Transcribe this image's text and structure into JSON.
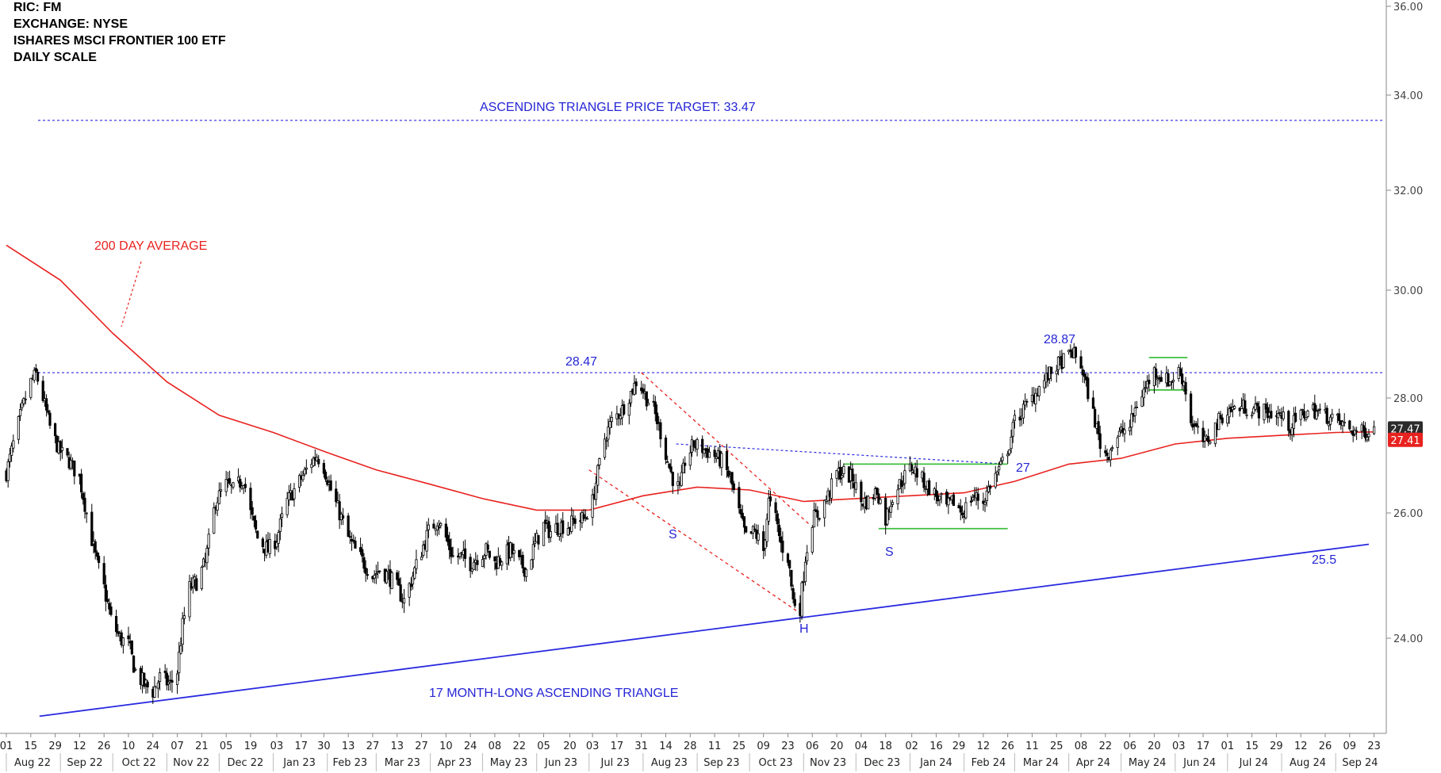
{
  "header": {
    "ric": "RIC: FM",
    "exchange": "EXCHANGE: NYSE",
    "name": "ISHARES MSCI FRONTIER 100 ETF",
    "scale": "DAILY SCALE"
  },
  "colors": {
    "price": "#000000",
    "average": "#e8221f",
    "trend": "#2a2ae0",
    "annotation_blue": "#2525d6",
    "rectangle": "#3fbf3f",
    "axis": "#888888"
  },
  "chart_data": {
    "type": "candlestick",
    "ylim": [
      22.5,
      36.0
    ],
    "y_ticks": [
      "36.00",
      "34.00",
      "32.00",
      "30.00",
      "28.00",
      "26.00",
      "24.00"
    ],
    "y_tick_values": [
      36,
      34,
      32,
      30,
      28,
      26,
      24
    ],
    "x_range": [
      "2022-08-01",
      "2024-09-30"
    ],
    "day_ticks": [
      {
        "d": "2022-08-01",
        "label": "01"
      },
      {
        "d": "2022-08-15",
        "label": "15"
      },
      {
        "d": "2022-08-29",
        "label": "29"
      },
      {
        "d": "2022-09-12",
        "label": "12"
      },
      {
        "d": "2022-09-26",
        "label": "26"
      },
      {
        "d": "2022-10-10",
        "label": "10"
      },
      {
        "d": "2022-10-24",
        "label": "24"
      },
      {
        "d": "2022-11-07",
        "label": "07"
      },
      {
        "d": "2022-11-21",
        "label": "21"
      },
      {
        "d": "2022-12-05",
        "label": "05"
      },
      {
        "d": "2022-12-19",
        "label": "19"
      },
      {
        "d": "2023-01-03",
        "label": "03"
      },
      {
        "d": "2023-01-17",
        "label": "17"
      },
      {
        "d": "2023-01-30",
        "label": "30"
      },
      {
        "d": "2023-02-13",
        "label": "13"
      },
      {
        "d": "2023-02-27",
        "label": "27"
      },
      {
        "d": "2023-03-13",
        "label": "13"
      },
      {
        "d": "2023-03-27",
        "label": "27"
      },
      {
        "d": "2023-04-10",
        "label": "10"
      },
      {
        "d": "2023-04-24",
        "label": "24"
      },
      {
        "d": "2023-05-08",
        "label": "08"
      },
      {
        "d": "2023-05-22",
        "label": "22"
      },
      {
        "d": "2023-06-05",
        "label": "05"
      },
      {
        "d": "2023-06-20",
        "label": "20"
      },
      {
        "d": "2023-07-03",
        "label": "03"
      },
      {
        "d": "2023-07-17",
        "label": "17"
      },
      {
        "d": "2023-07-31",
        "label": "31"
      },
      {
        "d": "2023-08-14",
        "label": "14"
      },
      {
        "d": "2023-08-28",
        "label": "28"
      },
      {
        "d": "2023-09-11",
        "label": "11"
      },
      {
        "d": "2023-09-25",
        "label": "25"
      },
      {
        "d": "2023-10-09",
        "label": "09"
      },
      {
        "d": "2023-10-23",
        "label": "23"
      },
      {
        "d": "2023-11-06",
        "label": "06"
      },
      {
        "d": "2023-11-20",
        "label": "20"
      },
      {
        "d": "2023-12-04",
        "label": "04"
      },
      {
        "d": "2023-12-18",
        "label": "18"
      },
      {
        "d": "2024-01-02",
        "label": "02"
      },
      {
        "d": "2024-01-16",
        "label": "16"
      },
      {
        "d": "2024-01-29",
        "label": "29"
      },
      {
        "d": "2024-02-12",
        "label": "12"
      },
      {
        "d": "2024-02-26",
        "label": "26"
      },
      {
        "d": "2024-03-11",
        "label": "11"
      },
      {
        "d": "2024-03-25",
        "label": "25"
      },
      {
        "d": "2024-04-08",
        "label": "08"
      },
      {
        "d": "2024-04-22",
        "label": "22"
      },
      {
        "d": "2024-05-06",
        "label": "06"
      },
      {
        "d": "2024-05-20",
        "label": "20"
      },
      {
        "d": "2024-06-03",
        "label": "03"
      },
      {
        "d": "2024-06-17",
        "label": "17"
      },
      {
        "d": "2024-07-01",
        "label": "01"
      },
      {
        "d": "2024-07-15",
        "label": "15"
      },
      {
        "d": "2024-07-29",
        "label": "29"
      },
      {
        "d": "2024-08-12",
        "label": "12"
      },
      {
        "d": "2024-08-26",
        "label": "26"
      },
      {
        "d": "2024-09-09",
        "label": "09"
      },
      {
        "d": "2024-09-23",
        "label": "23"
      }
    ],
    "month_ticks": [
      {
        "d": "2022-08-16",
        "label": "Aug 22"
      },
      {
        "d": "2022-09-15",
        "label": "Sep 22"
      },
      {
        "d": "2022-10-16",
        "label": "Oct 22"
      },
      {
        "d": "2022-11-15",
        "label": "Nov 22"
      },
      {
        "d": "2022-12-16",
        "label": "Dec 22"
      },
      {
        "d": "2023-01-16",
        "label": "Jan 23"
      },
      {
        "d": "2023-02-14",
        "label": "Feb 23"
      },
      {
        "d": "2023-03-16",
        "label": "Mar 23"
      },
      {
        "d": "2023-04-15",
        "label": "Apr 23"
      },
      {
        "d": "2023-05-16",
        "label": "May 23"
      },
      {
        "d": "2023-06-15",
        "label": "Jun 23"
      },
      {
        "d": "2023-07-16",
        "label": "Jul 23"
      },
      {
        "d": "2023-08-16",
        "label": "Aug 23"
      },
      {
        "d": "2023-09-15",
        "label": "Sep 23"
      },
      {
        "d": "2023-10-16",
        "label": "Oct 23"
      },
      {
        "d": "2023-11-15",
        "label": "Nov 23"
      },
      {
        "d": "2023-12-16",
        "label": "Dec 23"
      },
      {
        "d": "2024-01-16",
        "label": "Jan 24"
      },
      {
        "d": "2024-02-15",
        "label": "Feb 24"
      },
      {
        "d": "2024-03-16",
        "label": "Mar 24"
      },
      {
        "d": "2024-04-15",
        "label": "Apr 24"
      },
      {
        "d": "2024-05-16",
        "label": "May 24"
      },
      {
        "d": "2024-06-15",
        "label": "Jun 24"
      },
      {
        "d": "2024-07-16",
        "label": "Jul 24"
      },
      {
        "d": "2024-08-16",
        "label": "Aug 24"
      },
      {
        "d": "2024-09-15",
        "label": "Sep 24"
      }
    ],
    "price_path": [
      [
        "2022-08-01",
        26.7
      ],
      [
        "2022-08-05",
        27.2
      ],
      [
        "2022-08-10",
        27.8
      ],
      [
        "2022-08-15",
        28.3
      ],
      [
        "2022-08-18",
        28.45
      ],
      [
        "2022-08-22",
        28.0
      ],
      [
        "2022-08-26",
        27.5
      ],
      [
        "2022-08-31",
        27.1
      ],
      [
        "2022-09-06",
        26.9
      ],
      [
        "2022-09-12",
        26.6
      ],
      [
        "2022-09-16",
        26.0
      ],
      [
        "2022-09-21",
        25.3
      ],
      [
        "2022-09-26",
        24.8
      ],
      [
        "2022-09-30",
        24.3
      ],
      [
        "2022-10-05",
        24.0
      ],
      [
        "2022-10-10",
        23.9
      ],
      [
        "2022-10-14",
        23.5
      ],
      [
        "2022-10-19",
        23.3
      ],
      [
        "2022-10-24",
        23.2
      ],
      [
        "2022-10-28",
        23.4
      ],
      [
        "2022-11-03",
        23.3
      ],
      [
        "2022-11-07",
        23.5
      ],
      [
        "2022-11-10",
        24.2
      ],
      [
        "2022-11-14",
        24.8
      ],
      [
        "2022-11-18",
        24.9
      ],
      [
        "2022-11-23",
        25.2
      ],
      [
        "2022-11-29",
        26.2
      ],
      [
        "2022-12-05",
        26.5
      ],
      [
        "2022-12-09",
        26.4
      ],
      [
        "2022-12-15",
        26.6
      ],
      [
        "2022-12-19",
        26.0
      ],
      [
        "2022-12-23",
        25.6
      ],
      [
        "2022-12-29",
        25.4
      ],
      [
        "2023-01-03",
        25.6
      ],
      [
        "2023-01-09",
        26.2
      ],
      [
        "2023-01-17",
        26.6
      ],
      [
        "2023-01-23",
        26.9
      ],
      [
        "2023-01-26",
        27.0
      ],
      [
        "2023-01-30",
        26.8
      ],
      [
        "2023-02-03",
        26.4
      ],
      [
        "2023-02-08",
        26.0
      ],
      [
        "2023-02-13",
        25.6
      ],
      [
        "2023-02-17",
        25.4
      ],
      [
        "2023-02-22",
        25.2
      ],
      [
        "2023-02-27",
        25.0
      ],
      [
        "2023-03-03",
        25.1
      ],
      [
        "2023-03-08",
        25.0
      ],
      [
        "2023-03-13",
        24.8
      ],
      [
        "2023-03-17",
        24.6
      ],
      [
        "2023-03-22",
        25.0
      ],
      [
        "2023-03-27",
        25.4
      ],
      [
        "2023-03-31",
        25.7
      ],
      [
        "2023-04-05",
        25.9
      ],
      [
        "2023-04-10",
        25.6
      ],
      [
        "2023-04-14",
        25.3
      ],
      [
        "2023-04-19",
        25.3
      ],
      [
        "2023-04-24",
        25.2
      ],
      [
        "2023-04-28",
        25.3
      ],
      [
        "2023-05-03",
        25.4
      ],
      [
        "2023-05-08",
        25.2
      ],
      [
        "2023-05-12",
        25.3
      ],
      [
        "2023-05-17",
        25.4
      ],
      [
        "2023-05-22",
        25.2
      ],
      [
        "2023-05-26",
        25.1
      ],
      [
        "2023-05-31",
        25.5
      ],
      [
        "2023-06-05",
        25.8
      ],
      [
        "2023-06-09",
        25.7
      ],
      [
        "2023-06-14",
        25.8
      ],
      [
        "2023-06-20",
        25.8
      ],
      [
        "2023-06-23",
        25.9
      ],
      [
        "2023-06-28",
        25.9
      ],
      [
        "2023-07-03",
        26.2
      ],
      [
        "2023-07-06",
        26.7
      ],
      [
        "2023-07-10",
        27.3
      ],
      [
        "2023-07-14",
        27.6
      ],
      [
        "2023-07-20",
        27.8
      ],
      [
        "2023-07-25",
        28.1
      ],
      [
        "2023-07-28",
        28.3
      ],
      [
        "2023-07-31",
        28.2
      ],
      [
        "2023-08-03",
        28.0
      ],
      [
        "2023-08-07",
        27.8
      ],
      [
        "2023-08-11",
        27.4
      ],
      [
        "2023-08-15",
        26.9
      ],
      [
        "2023-08-18",
        26.6
      ],
      [
        "2023-08-22",
        26.4
      ],
      [
        "2023-08-25",
        26.9
      ],
      [
        "2023-08-30",
        27.2
      ],
      [
        "2023-09-05",
        27.1
      ],
      [
        "2023-09-11",
        27.0
      ],
      [
        "2023-09-15",
        26.9
      ],
      [
        "2023-09-20",
        26.6
      ],
      [
        "2023-09-25",
        26.0
      ],
      [
        "2023-09-29",
        25.6
      ],
      [
        "2023-10-04",
        25.7
      ],
      [
        "2023-10-09",
        25.4
      ],
      [
        "2023-10-12",
        26.2
      ],
      [
        "2023-10-16",
        25.9
      ],
      [
        "2023-10-19",
        25.5
      ],
      [
        "2023-10-23",
        25.3
      ],
      [
        "2023-10-26",
        24.6
      ],
      [
        "2023-10-30",
        24.5
      ],
      [
        "2023-11-02",
        25.3
      ],
      [
        "2023-11-06",
        25.9
      ],
      [
        "2023-11-10",
        26.0
      ],
      [
        "2023-11-15",
        26.3
      ],
      [
        "2023-11-20",
        26.7
      ],
      [
        "2023-11-24",
        26.7
      ],
      [
        "2023-11-29",
        26.6
      ],
      [
        "2023-12-04",
        26.2
      ],
      [
        "2023-12-08",
        26.2
      ],
      [
        "2023-12-13",
        26.4
      ],
      [
        "2023-12-18",
        25.9
      ],
      [
        "2023-12-22",
        26.3
      ],
      [
        "2023-12-28",
        26.6
      ],
      [
        "2024-01-02",
        26.8
      ],
      [
        "2024-01-05",
        26.7
      ],
      [
        "2024-01-10",
        26.5
      ],
      [
        "2024-01-16",
        26.3
      ],
      [
        "2024-01-22",
        26.1
      ],
      [
        "2024-01-26",
        26.2
      ],
      [
        "2024-01-31",
        26.0
      ],
      [
        "2024-02-06",
        26.3
      ],
      [
        "2024-02-12",
        26.2
      ],
      [
        "2024-02-16",
        26.5
      ],
      [
        "2024-02-22",
        26.8
      ],
      [
        "2024-02-27",
        27.2
      ],
      [
        "2024-03-01",
        27.6
      ],
      [
        "2024-03-06",
        27.8
      ],
      [
        "2024-03-11",
        28.0
      ],
      [
        "2024-03-15",
        28.2
      ],
      [
        "2024-03-20",
        28.4
      ],
      [
        "2024-03-25",
        28.6
      ],
      [
        "2024-03-29",
        28.7
      ],
      [
        "2024-04-03",
        28.85
      ],
      [
        "2024-04-08",
        28.6
      ],
      [
        "2024-04-12",
        28.1
      ],
      [
        "2024-04-16",
        27.6
      ],
      [
        "2024-04-19",
        27.2
      ],
      [
        "2024-04-23",
        27.0
      ],
      [
        "2024-04-26",
        27.2
      ],
      [
        "2024-05-01",
        27.4
      ],
      [
        "2024-05-06",
        27.5
      ],
      [
        "2024-05-10",
        27.9
      ],
      [
        "2024-05-15",
        28.2
      ],
      [
        "2024-05-20",
        28.5
      ],
      [
        "2024-05-24",
        28.4
      ],
      [
        "2024-05-29",
        28.3
      ],
      [
        "2024-06-03",
        28.5
      ],
      [
        "2024-06-06",
        28.3
      ],
      [
        "2024-06-10",
        27.6
      ],
      [
        "2024-06-14",
        27.4
      ],
      [
        "2024-06-18",
        27.2
      ],
      [
        "2024-06-24",
        27.5
      ],
      [
        "2024-06-28",
        27.7
      ],
      [
        "2024-07-03",
        27.8
      ],
      [
        "2024-07-10",
        27.85
      ],
      [
        "2024-07-17",
        27.8
      ],
      [
        "2024-07-24",
        27.75
      ],
      [
        "2024-07-31",
        27.7
      ],
      [
        "2024-08-06",
        27.5
      ],
      [
        "2024-08-12",
        27.7
      ],
      [
        "2024-08-19",
        27.8
      ],
      [
        "2024-08-26",
        27.7
      ],
      [
        "2024-09-02",
        27.6
      ],
      [
        "2024-09-09",
        27.45
      ],
      [
        "2024-09-16",
        27.4
      ],
      [
        "2024-09-20",
        27.45
      ],
      [
        "2024-09-23",
        27.47
      ]
    ],
    "moving_average_200": [
      [
        "2022-08-01",
        30.9
      ],
      [
        "2022-09-01",
        30.2
      ],
      [
        "2022-10-01",
        29.2
      ],
      [
        "2022-11-01",
        28.3
      ],
      [
        "2022-12-01",
        27.7
      ],
      [
        "2023-01-01",
        27.4
      ],
      [
        "2023-02-01",
        27.05
      ],
      [
        "2023-03-01",
        26.75
      ],
      [
        "2023-04-01",
        26.5
      ],
      [
        "2023-05-01",
        26.25
      ],
      [
        "2023-06-01",
        26.05
      ],
      [
        "2023-07-01",
        26.05
      ],
      [
        "2023-08-01",
        26.3
      ],
      [
        "2023-09-01",
        26.45
      ],
      [
        "2023-10-01",
        26.4
      ],
      [
        "2023-11-01",
        26.2
      ],
      [
        "2023-12-01",
        26.25
      ],
      [
        "2024-01-01",
        26.3
      ],
      [
        "2024-02-01",
        26.35
      ],
      [
        "2024-03-01",
        26.55
      ],
      [
        "2024-04-01",
        26.85
      ],
      [
        "2024-05-01",
        26.95
      ],
      [
        "2024-06-01",
        27.2
      ],
      [
        "2024-07-01",
        27.3
      ],
      [
        "2024-08-01",
        27.35
      ],
      [
        "2024-09-01",
        27.4
      ],
      [
        "2024-09-23",
        27.41
      ]
    ],
    "levels": {
      "target": 33.47,
      "resistance": 28.47,
      "rect_top": 26.85,
      "rect_bottom": 25.75,
      "neckline": [
        [
          "2023-08-20",
          27.2
        ],
        [
          "2024-02-26",
          26.85
        ]
      ],
      "support": [
        [
          "2022-08-20",
          22.82
        ],
        [
          "2024-09-20",
          25.5
        ]
      ],
      "channel_upper": [
        [
          "2023-07-31",
          28.47
        ],
        [
          "2023-11-05",
          25.8
        ]
      ],
      "channel_lower": [
        [
          "2023-07-01",
          26.75
        ],
        [
          "2023-10-30",
          24.4
        ]
      ],
      "flag_top": [
        [
          "2024-05-17",
          28.75
        ],
        [
          "2024-06-08",
          28.75
        ]
      ],
      "flag_bottom": [
        [
          "2024-05-17",
          28.15
        ],
        [
          "2024-06-08",
          28.15
        ]
      ]
    },
    "last_price": "27.47",
    "last_average": "27.41",
    "annotations": {
      "target": "ASCENDING TRIANGLE PRICE TARGET: 33.47",
      "average": "200 DAY AVERAGE",
      "high_2847": "28.47",
      "high_2887": "28.87",
      "level_27": "27",
      "level_255": "25.5",
      "left_shoulder": "S",
      "right_shoulder": "S",
      "head": "H",
      "triangle": "17 MONTH-LONG ASCENDING TRIANGLE"
    }
  }
}
